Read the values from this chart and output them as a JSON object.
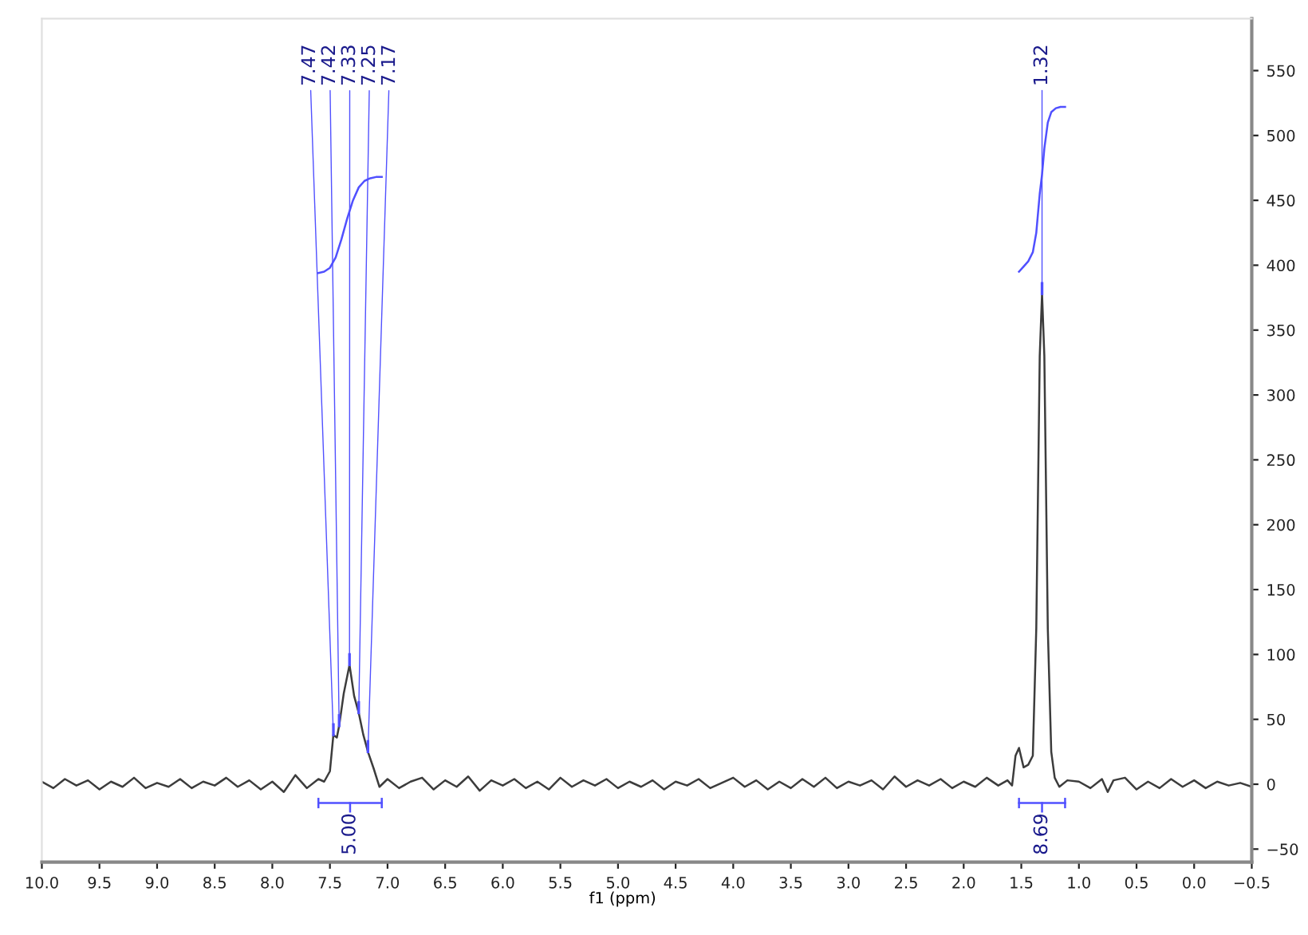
{
  "chart_data": {
    "type": "line",
    "xlabel": "f1 (ppm)",
    "xlim": [
      10.0,
      -0.5
    ],
    "xticks": [
      {
        "value": 10.0,
        "label": "10.0"
      },
      9.5,
      {
        "value": 9.0,
        "label": "9.0"
      },
      8.5,
      {
        "value": 8.0,
        "label": "8.0"
      },
      7.5,
      {
        "value": 7.0,
        "label": "7.0"
      },
      6.5,
      {
        "value": 6.0,
        "label": "6.0"
      },
      5.5,
      {
        "value": 5.0,
        "label": "5.0"
      },
      4.5,
      {
        "value": 4.0,
        "label": "4.0"
      },
      3.5,
      {
        "value": 3.0,
        "label": "3.0"
      },
      2.5,
      {
        "value": 2.0,
        "label": "2.0"
      },
      1.5,
      {
        "value": 1.0,
        "label": "1.0"
      },
      0.5,
      {
        "value": 0.0,
        "label": "0.0"
      },
      {
        "value": -0.5,
        "label": "−0.5"
      }
    ],
    "ylim": [
      -60,
      590
    ],
    "yticks": [
      {
        "value": -50,
        "label": "−50"
      },
      0,
      50,
      100,
      150,
      200,
      250,
      300,
      350,
      400,
      450,
      500,
      550
    ],
    "grid": false,
    "legend": false,
    "marker": "none",
    "line_style": "solid",
    "series": [
      {
        "color": "#3c3c3c",
        "x": [
          10.0,
          9.9,
          9.8,
          9.7,
          9.6,
          9.5,
          9.4,
          9.3,
          9.2,
          9.1,
          9.0,
          8.9,
          8.8,
          8.7,
          8.6,
          8.5,
          8.4,
          8.3,
          8.2,
          8.1,
          8.0,
          7.9,
          7.8,
          7.7,
          7.6,
          7.55,
          7.5,
          7.47,
          7.44,
          7.42,
          7.38,
          7.33,
          7.29,
          7.25,
          7.21,
          7.17,
          7.12,
          7.07,
          7.0,
          6.9,
          6.8,
          6.7,
          6.6,
          6.5,
          6.4,
          6.3,
          6.2,
          6.1,
          6.0,
          5.9,
          5.8,
          5.7,
          5.6,
          5.5,
          5.4,
          5.3,
          5.2,
          5.1,
          5.0,
          4.9,
          4.8,
          4.7,
          4.6,
          4.5,
          4.4,
          4.3,
          4.2,
          4.1,
          4.0,
          3.9,
          3.8,
          3.7,
          3.6,
          3.5,
          3.4,
          3.3,
          3.2,
          3.1,
          3.0,
          2.9,
          2.8,
          2.7,
          2.6,
          2.5,
          2.4,
          2.3,
          2.2,
          2.1,
          2.0,
          1.9,
          1.8,
          1.7,
          1.62,
          1.58,
          1.55,
          1.52,
          1.48,
          1.44,
          1.4,
          1.37,
          1.34,
          1.32,
          1.3,
          1.27,
          1.24,
          1.21,
          1.17,
          1.1,
          1.0,
          0.9,
          0.8,
          0.75,
          0.7,
          0.6,
          0.5,
          0.4,
          0.3,
          0.2,
          0.1,
          0.0,
          -0.1,
          -0.2,
          -0.3,
          -0.4,
          -0.5
        ],
        "values": [
          2,
          -3,
          4,
          -1,
          3,
          -4,
          2,
          -2,
          5,
          -3,
          1,
          -2,
          4,
          -3,
          2,
          -1,
          5,
          -2,
          3,
          -4,
          2,
          -6,
          7,
          -3,
          4,
          2,
          10,
          38,
          36,
          45,
          70,
          92,
          68,
          55,
          38,
          25,
          12,
          -2,
          4,
          -3,
          2,
          5,
          -4,
          3,
          -2,
          6,
          -5,
          3,
          -1,
          4,
          -3,
          2,
          -4,
          5,
          -2,
          3,
          -1,
          4,
          -3,
          2,
          -2,
          3,
          -4,
          2,
          -1,
          4,
          -3,
          1,
          5,
          -2,
          3,
          -4,
          2,
          -3,
          4,
          -2,
          5,
          -3,
          2,
          -1,
          3,
          -4,
          6,
          -2,
          3,
          -1,
          4,
          -3,
          2,
          -2,
          5,
          -1,
          3,
          -1,
          22,
          28,
          13,
          15,
          22,
          120,
          330,
          378,
          330,
          120,
          25,
          5,
          -2,
          3,
          2,
          -3,
          4,
          -6,
          3,
          5,
          -4,
          2,
          -3,
          4,
          -2,
          3,
          -3,
          2,
          -1,
          1,
          -2
        ]
      },
      {
        "color": "#5050ff",
        "x": [
          7.6,
          7.55,
          7.5,
          7.45,
          7.4,
          7.35,
          7.3,
          7.25,
          7.2,
          7.15,
          7.1,
          7.05
        ],
        "values": [
          394,
          395,
          398,
          406,
          420,
          436,
          450,
          460,
          465,
          467,
          468,
          468
        ]
      },
      {
        "color": "#5050ff",
        "x": [
          1.52,
          1.48,
          1.44,
          1.4,
          1.37,
          1.34,
          1.32,
          1.3,
          1.27,
          1.24,
          1.2,
          1.16,
          1.12
        ],
        "values": [
          395,
          399,
          403,
          410,
          425,
          455,
          470,
          490,
          510,
          518,
          521,
          522,
          522
        ]
      }
    ],
    "annotations": [
      {
        "text": "7.47",
        "x": 7.47,
        "y": 38
      },
      {
        "text": "7.42",
        "x": 7.42,
        "y": 45
      },
      {
        "text": "7.33",
        "x": 7.33,
        "y": 92
      },
      {
        "text": "7.25",
        "x": 7.25,
        "y": 55
      },
      {
        "text": "7.17",
        "x": 7.17,
        "y": 25
      },
      {
        "text": "1.32",
        "x": 1.32,
        "y": 378
      },
      "5.00",
      "8.69"
    ]
  }
}
